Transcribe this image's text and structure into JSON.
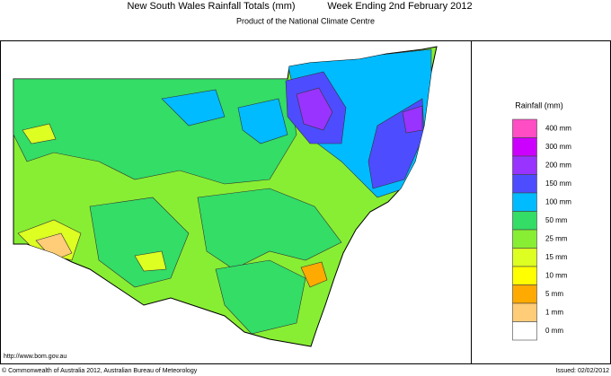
{
  "header": {
    "title": "New South Wales Rainfall Totals (mm)",
    "period": "Week Ending 2nd February 2012",
    "subtitle": "Product of the National Climate Centre"
  },
  "legend": {
    "title": "Rainfall (mm)",
    "entries": [
      {
        "label": "400 mm",
        "color": "#ff4dc4"
      },
      {
        "label": "300 mm",
        "color": "#cc00ff"
      },
      {
        "label": "200 mm",
        "color": "#9933ff"
      },
      {
        "label": "150 mm",
        "color": "#4d4dff"
      },
      {
        "label": "100 mm",
        "color": "#00bbff"
      },
      {
        "label": "50 mm",
        "color": "#33dd66"
      },
      {
        "label": "25 mm",
        "color": "#88ee33"
      },
      {
        "label": "15 mm",
        "color": "#ddff22"
      },
      {
        "label": "10 mm",
        "color": "#ffff00"
      },
      {
        "label": "5 mm",
        "color": "#ffaa00"
      },
      {
        "label": "1 mm",
        "color": "#ffcc77"
      },
      {
        "label": "0 mm",
        "color": "#ffffff"
      }
    ]
  },
  "footer": {
    "url": "http://www.bom.gov.au",
    "copyright": "© Commonwealth of Australia 2012, Australian Bureau of Meteorology",
    "issued": "Issued: 02/02/2012"
  }
}
